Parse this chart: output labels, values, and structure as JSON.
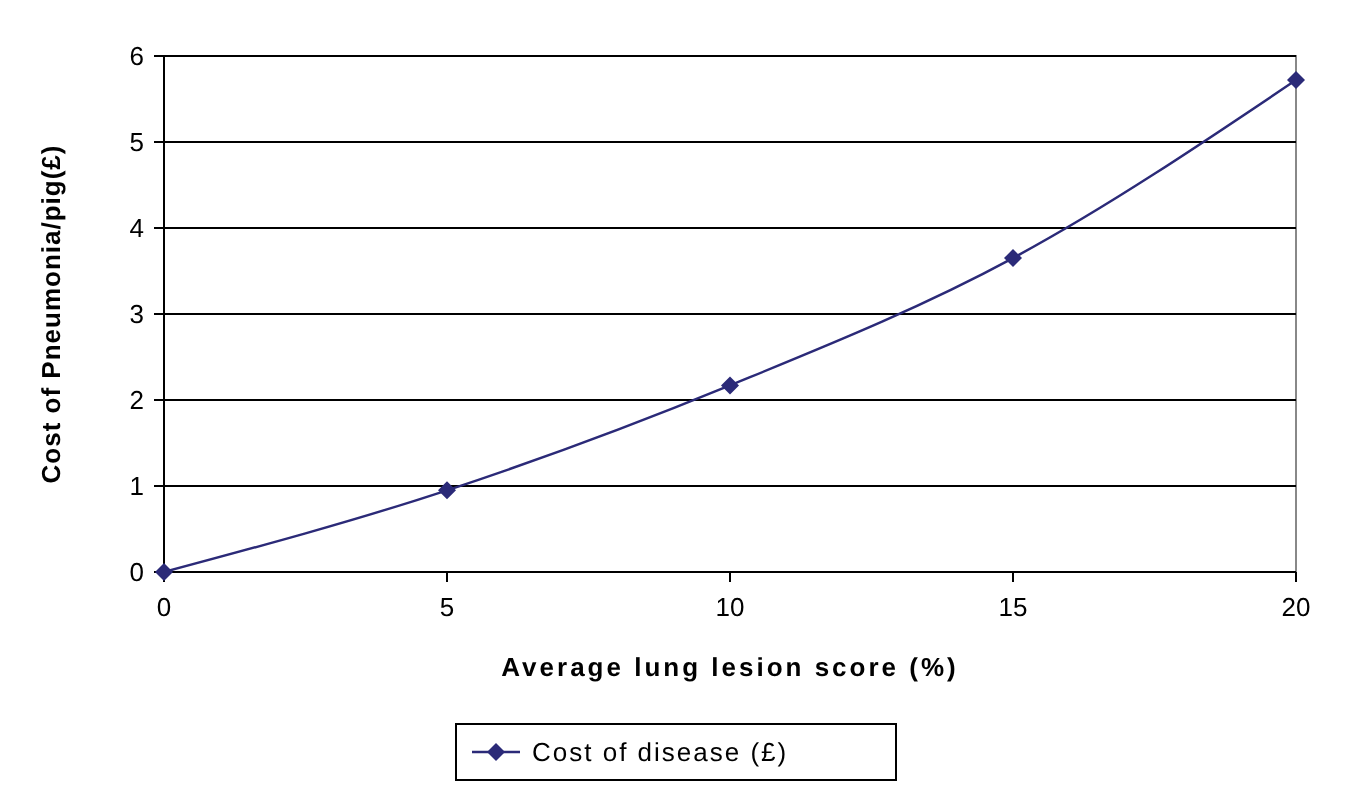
{
  "chart_data": {
    "type": "line",
    "xlabel": "Average lung lesion score (%)",
    "ylabel": "Cost of Pneumonia/pig(£)",
    "x": [
      0,
      5,
      10,
      15,
      20
    ],
    "series": [
      {
        "name": "Cost of disease (£)",
        "color": "#2b2a78",
        "values": [
          0,
          0.95,
          2.17,
          3.65,
          5.72
        ]
      }
    ],
    "xlim": [
      0,
      20
    ],
    "xticks": [
      0,
      5,
      10,
      15,
      20
    ],
    "ylim": [
      0,
      6
    ],
    "yticks": [
      0,
      1,
      2,
      3,
      4,
      5,
      6
    ],
    "grid": "y",
    "legend": "bottom",
    "marker": "diamond",
    "line_style": "solid"
  }
}
